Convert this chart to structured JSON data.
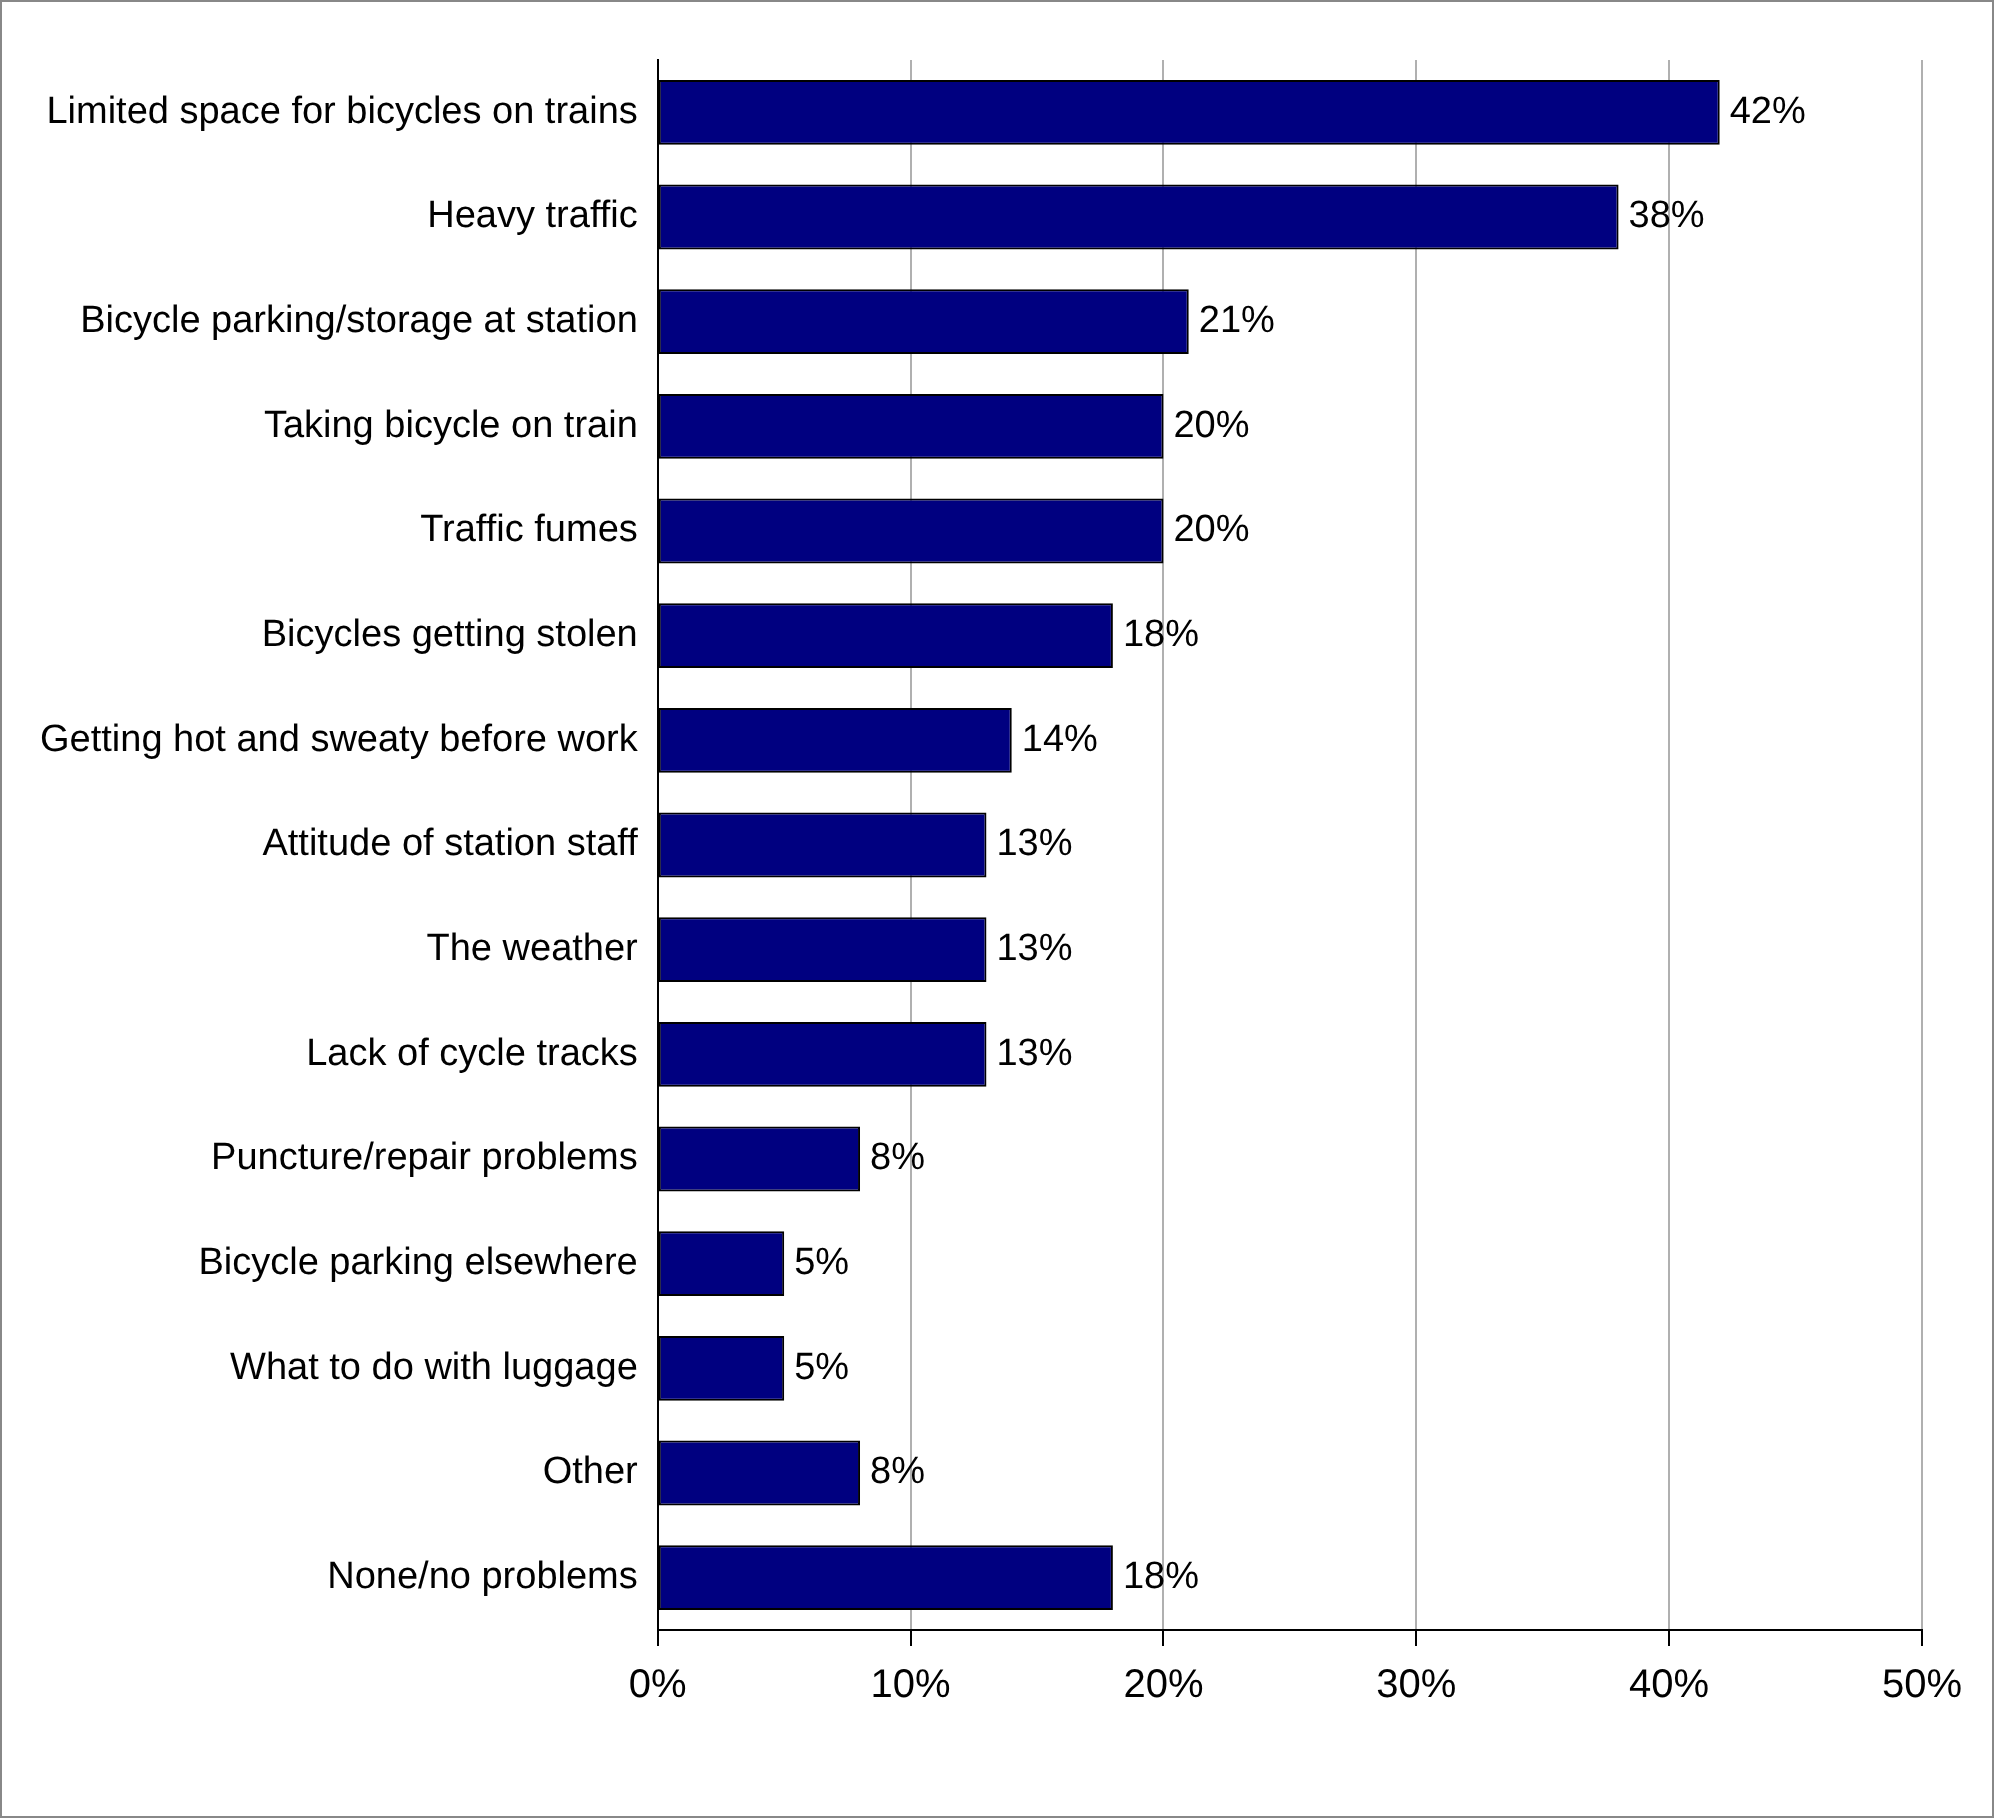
{
  "chart_data": {
    "type": "bar",
    "orientation": "horizontal",
    "categories": [
      "Limited space for bicycles on trains",
      "Heavy traffic",
      "Bicycle parking/storage at station",
      "Taking bicycle on train",
      "Traffic fumes",
      "Bicycles getting stolen",
      "Getting hot and sweaty before work",
      "Attitude of station staff",
      "The weather",
      "Lack of cycle tracks",
      "Puncture/repair problems",
      "Bicycle parking elsewhere",
      "What to do with luggage",
      "Other",
      "None/no problems"
    ],
    "values": [
      42,
      38,
      21,
      20,
      20,
      18,
      14,
      13,
      13,
      13,
      8,
      5,
      5,
      8,
      18
    ],
    "value_labels": [
      "42%",
      "38%",
      "21%",
      "20%",
      "20%",
      "18%",
      "14%",
      "13%",
      "13%",
      "13%",
      "8%",
      "5%",
      "5%",
      "8%",
      "18%"
    ],
    "color": "#000080",
    "xlim": [
      0,
      50
    ],
    "xticks": [
      {
        "value": 0,
        "label": "0%"
      },
      {
        "value": 10,
        "label": "10%"
      },
      {
        "value": 20,
        "label": "20%"
      },
      {
        "value": 30,
        "label": "30%"
      },
      {
        "value": 40,
        "label": "40%"
      },
      {
        "value": 50,
        "label": "50%"
      }
    ],
    "grid": "x",
    "legend": false
  }
}
